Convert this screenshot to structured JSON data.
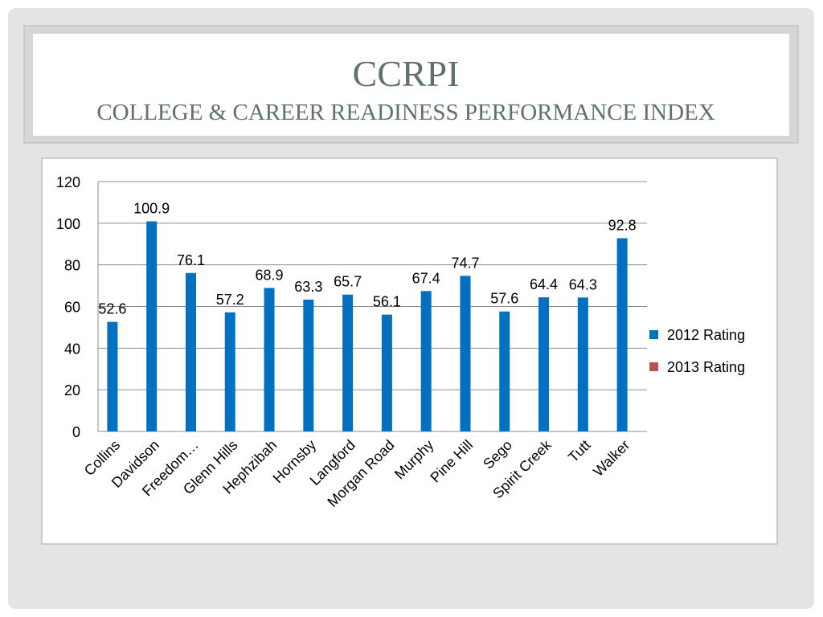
{
  "chart_data": {
    "type": "bar",
    "title": "CCRPI",
    "subtitle": "COLLEGE & CAREER READINESS PERFORMANCE INDEX",
    "categories": [
      "Collins",
      "Davidson",
      "Freedom…",
      "Glenn Hills",
      "Hephzibah",
      "Hornsby",
      "Langford",
      "Morgan Road",
      "Murphy",
      "Pine Hill",
      "Sego",
      "Spirit Creek",
      "Tutt",
      "Walker"
    ],
    "series": [
      {
        "name": "2012 Rating",
        "color": "#0070c0",
        "values": [
          52.6,
          100.9,
          76.1,
          57.2,
          68.9,
          63.3,
          65.7,
          56.1,
          67.4,
          74.7,
          57.6,
          64.4,
          64.3,
          92.8
        ]
      },
      {
        "name": "2013 Rating",
        "color": "#c0504d",
        "values": [
          null,
          null,
          null,
          null,
          null,
          null,
          null,
          null,
          null,
          null,
          null,
          null,
          null,
          null
        ]
      }
    ],
    "ylim": [
      0,
      120
    ],
    "yticks": [
      0,
      20,
      40,
      60,
      80,
      100,
      120
    ],
    "grid": true,
    "legend": "right"
  }
}
